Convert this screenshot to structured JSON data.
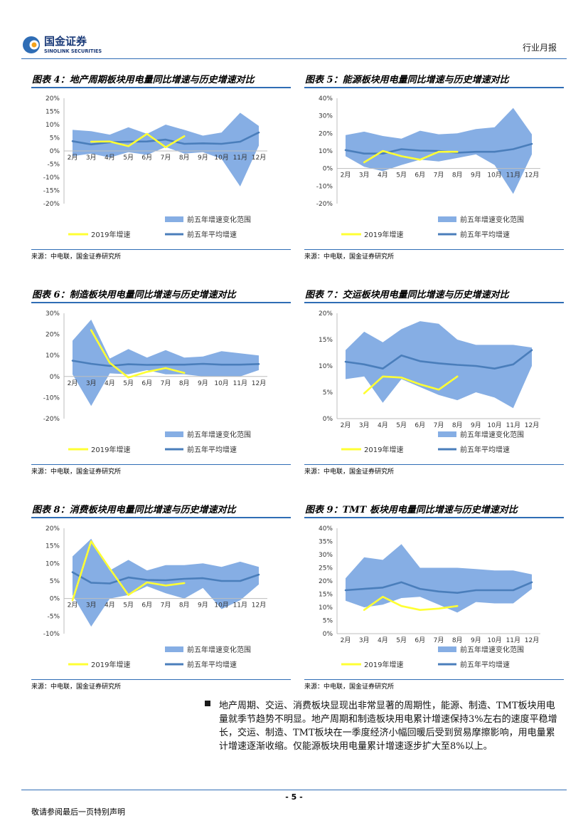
{
  "header": {
    "logo_cn": "国金证券",
    "logo_en": "SINOLINK SECURITIES",
    "report_type": "行业月报"
  },
  "colors": {
    "accent": "#2f6db5",
    "band": "#86aee4",
    "line2019": "#ffff33",
    "avg": "#4a7ebb"
  },
  "legend": {
    "band": "前五年增速变化范围",
    "y2019": "2019年增速",
    "avg": "前五年平均增速"
  },
  "panels": [
    {
      "title": "图表 4：地产周期板块用电量同比增速与历史增速对比",
      "source": "来源：中电联，国金证券研究所"
    },
    {
      "title": "图表 5：能源板块用电量同比增速与历史增速对比",
      "source": "来源：中电联，国金证券研究所"
    },
    {
      "title": "图表 6：制造板块用电量同比增速与历史增速对比",
      "source": "来源：中电联，国金证券研究所"
    },
    {
      "title": "图表 7：交运板块用电量同比增速与历史增速对比",
      "source": "来源：中电联，国金证券研究所"
    },
    {
      "title": "图表 8：消费板块用电量同比增速与历史增速对比",
      "source": "来源：中电联，国金证券研究所"
    },
    {
      "title": "图表 9：TMT 板块用电量同比增速与历史增速对比",
      "source": "来源：中电联，国金证券研究所"
    }
  ],
  "chart_data": [
    {
      "type": "area",
      "title": "地产周期板块用电量同比增速与历史增速对比",
      "categories": [
        "2月",
        "3月",
        "4月",
        "5月",
        "6月",
        "7月",
        "8月",
        "9月",
        "10月",
        "11月",
        "12月"
      ],
      "yticks": [
        "20%",
        "15%",
        "10%",
        "5%",
        "0%",
        "-5%",
        "-10%",
        "-15%",
        "-20%"
      ],
      "ylim": [
        -20,
        20
      ],
      "series": [
        {
          "name": "前五年增速变化范围",
          "kind": "band",
          "upper": [
            8,
            7.5,
            6.2,
            9,
            6.5,
            10,
            8,
            5.8,
            7,
            14.5,
            9.5
          ],
          "lower": [
            -2,
            -1,
            -2.5,
            -0.5,
            -1.5,
            1.5,
            -1,
            -0.5,
            -3,
            -13.5,
            2
          ]
        },
        {
          "name": "2019年增速",
          "kind": "line",
          "values": [
            null,
            3.5,
            3.6,
            1.8,
            6.5,
            1.4,
            5.6,
            null,
            null,
            null,
            null
          ]
        },
        {
          "name": "前五年平均增速",
          "kind": "line",
          "values": [
            3.7,
            2.5,
            3.3,
            3.5,
            3.6,
            4.3,
            2.7,
            2.9,
            2.7,
            3.5,
            7
          ]
        }
      ]
    },
    {
      "type": "area",
      "title": "能源板块用电量同比增速与历史增速对比",
      "categories": [
        "2月",
        "3月",
        "4月",
        "5月",
        "6月",
        "7月",
        "8月",
        "9月",
        "10月",
        "11月",
        "12月"
      ],
      "yticks": [
        "40%",
        "30%",
        "20%",
        "10%",
        "0%",
        "-10%",
        "-20%"
      ],
      "ylim": [
        -20,
        40
      ],
      "series": [
        {
          "name": "前五年增速变化范围",
          "kind": "band",
          "upper": [
            19,
            21,
            18.5,
            17,
            21.5,
            19.5,
            20,
            22.5,
            23.5,
            34.5,
            19.5
          ],
          "lower": [
            7,
            1,
            -1.5,
            2,
            5,
            4,
            6,
            8,
            2,
            -14.5,
            8
          ]
        },
        {
          "name": "2019年增速",
          "kind": "line",
          "values": [
            null,
            3.5,
            10,
            7,
            5,
            9.5,
            9.5,
            null,
            null,
            null,
            null
          ]
        },
        {
          "name": "前五年平均增速",
          "kind": "line",
          "values": [
            10.5,
            8.5,
            8.5,
            11,
            10.2,
            10,
            9,
            9.5,
            9.5,
            11,
            14
          ]
        }
      ]
    },
    {
      "type": "area",
      "title": "制造板块用电量同比增速与历史增速对比",
      "categories": [
        "2月",
        "3月",
        "4月",
        "5月",
        "6月",
        "7月",
        "8月",
        "9月",
        "10月",
        "11月",
        "12月"
      ],
      "yticks": [
        "30%",
        "20%",
        "10%",
        "0%",
        "-10%",
        "-20%"
      ],
      "ylim": [
        -20,
        30
      ],
      "series": [
        {
          "name": "前五年增速变化范围",
          "kind": "band",
          "upper": [
            17,
            27,
            8.5,
            13,
            9,
            12.5,
            9,
            9.5,
            12,
            11,
            10
          ],
          "lower": [
            1,
            -14,
            1.5,
            1,
            3,
            1,
            1,
            0,
            0,
            0,
            3
          ]
        },
        {
          "name": "2019年增速",
          "kind": "line",
          "values": [
            null,
            22,
            6.5,
            -0.5,
            2.2,
            4,
            1.7,
            null,
            null,
            null,
            null
          ]
        },
        {
          "name": "前五年平均增速",
          "kind": "line",
          "values": [
            7.5,
            6,
            5,
            5.8,
            5.5,
            5.6,
            5.6,
            6,
            5.6,
            5.6,
            5.9
          ]
        }
      ]
    },
    {
      "type": "area",
      "title": "交运板块用电量同比增速与历史增速对比",
      "categories": [
        "2月",
        "3月",
        "4月",
        "5月",
        "6月",
        "7月",
        "8月",
        "9月",
        "10月",
        "11月",
        "12月"
      ],
      "yticks": [
        "20%",
        "15%",
        "10%",
        "5%",
        "0%"
      ],
      "ylim": [
        0,
        20
      ],
      "series": [
        {
          "name": "前五年增速变化范围",
          "kind": "band",
          "upper": [
            13,
            16.5,
            14.5,
            17,
            18.5,
            18,
            15,
            14,
            14,
            14,
            13.5
          ],
          "lower": [
            7.5,
            8,
            3,
            7.5,
            6,
            4.5,
            3.5,
            5,
            4,
            2,
            10
          ]
        },
        {
          "name": "2019年增速",
          "kind": "line",
          "values": [
            null,
            4.8,
            8,
            7.8,
            6.5,
            5.5,
            8,
            null,
            null,
            null,
            null
          ]
        },
        {
          "name": "前五年平均增速",
          "kind": "line",
          "values": [
            10.8,
            10.3,
            9.5,
            12,
            10.9,
            10.5,
            10.2,
            10,
            9.5,
            10.3,
            13
          ]
        }
      ]
    },
    {
      "type": "area",
      "title": "消费板块用电量同比增速与历史增速对比",
      "categories": [
        "2月",
        "3月",
        "4月",
        "5月",
        "6月",
        "7月",
        "8月",
        "9月",
        "10月",
        "11月",
        "12月"
      ],
      "yticks": [
        "20%",
        "15%",
        "10%",
        "5%",
        "0%",
        "-5%",
        "-10%"
      ],
      "ylim": [
        -10,
        20
      ],
      "series": [
        {
          "name": "前五年增速变化范围",
          "kind": "band",
          "upper": [
            12,
            17,
            8,
            11,
            8,
            9.5,
            9.5,
            10,
            9,
            10.5,
            9
          ],
          "lower": [
            1,
            -8,
            0,
            1,
            3.5,
            1.5,
            0,
            3,
            -3,
            -0.5,
            4
          ]
        },
        {
          "name": "2019年增速",
          "kind": "line",
          "values": [
            -0.5,
            16.3,
            8.5,
            1,
            4.6,
            3.7,
            4.4,
            null,
            null,
            null,
            null
          ]
        },
        {
          "name": "前五年平均增速",
          "kind": "line",
          "values": [
            7.5,
            4.5,
            4.3,
            6,
            5.3,
            5.2,
            5.6,
            5.8,
            5,
            5,
            6.8
          ]
        }
      ]
    },
    {
      "type": "area",
      "title": "TMT 板块用电量同比增速与历史增速对比",
      "categories": [
        "2月",
        "3月",
        "4月",
        "5月",
        "6月",
        "7月",
        "8月",
        "9月",
        "10月",
        "11月",
        "12月"
      ],
      "yticks": [
        "40%",
        "35%",
        "30%",
        "25%",
        "20%",
        "15%",
        "10%",
        "5%",
        "0%"
      ],
      "ylim": [
        0,
        40
      ],
      "series": [
        {
          "name": "前五年增速变化范围",
          "kind": "band",
          "upper": [
            21,
            29,
            28,
            34,
            25,
            25,
            25,
            24.5,
            24,
            24,
            22.5
          ],
          "lower": [
            12.5,
            10,
            11,
            13.5,
            14,
            11,
            8,
            12,
            11.5,
            11.5,
            17
          ]
        },
        {
          "name": "2019年增速",
          "kind": "line",
          "values": [
            null,
            9,
            14,
            10.5,
            9,
            9.5,
            10.5,
            null,
            null,
            null,
            null
          ]
        },
        {
          "name": "前五年平均增速",
          "kind": "line",
          "values": [
            16.5,
            17,
            17.5,
            19.5,
            17,
            16,
            15.5,
            16.5,
            16.5,
            16.5,
            19.5
          ]
        }
      ]
    }
  ],
  "summary": "地产周期、交运、消费板块显现出非常显著的周期性，能源、制造、TMT板块用电量就季节趋势不明显。地产周期和制造板块用电累计增速保持3%左右的速度平稳增长，交运、制造、TMT板块在一季度经济小幅回暖后受到贸易摩擦影响，用电量累计增速逐渐收缩。仅能源板块用电量累计增速逐步扩大至8%以上。",
  "footer": {
    "page": "- 5 -",
    "note": "敬请参阅最后一页特别声明"
  }
}
